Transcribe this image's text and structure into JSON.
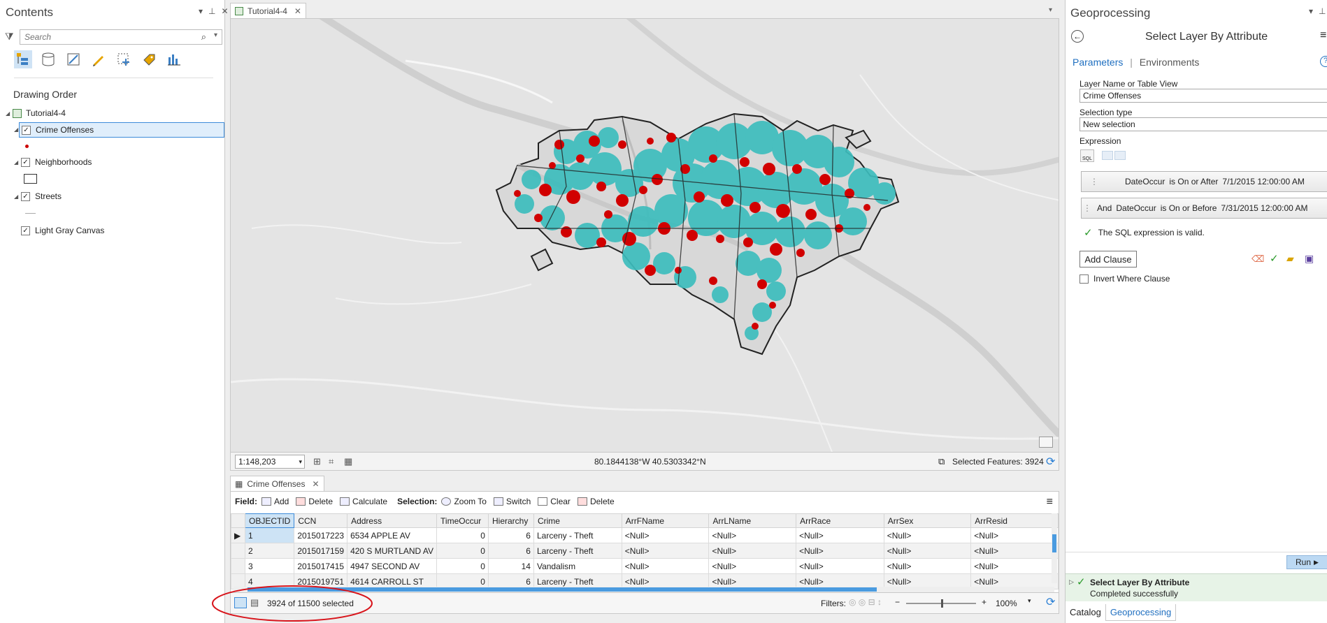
{
  "contents": {
    "title": "Contents",
    "search_placeholder": "Search",
    "section": "Drawing Order",
    "map_name": "Tutorial4-4",
    "layers": [
      {
        "label": "Crime Offenses"
      },
      {
        "label": "Neighborhoods"
      },
      {
        "label": "Streets"
      },
      {
        "label": "Light Gray Canvas"
      }
    ],
    "crime_color": "#cc0000"
  },
  "map": {
    "tab_label": "Tutorial4-4",
    "scale": "1:148,203",
    "coordinates": "80.1844138°W 40.5303342°N",
    "selected_features": "Selected Features: 3924",
    "selection_color": "#3bbcbf",
    "crime_color": "#d10000"
  },
  "table": {
    "tab_label": "Crime Offenses",
    "field_label": "Field:",
    "add": "Add",
    "delete": "Delete",
    "calculate": "Calculate",
    "selection_label": "Selection:",
    "zoom_to": "Zoom To",
    "switch": "Switch",
    "clear": "Clear",
    "sel_delete": "Delete",
    "columns": [
      "OBJECTID",
      "CCN",
      "Address",
      "TimeOccur",
      "Hierarchy",
      "Crime",
      "ArrFName",
      "ArrLName",
      "ArrRace",
      "ArrSex",
      "ArrResid"
    ],
    "rows": [
      [
        "1",
        "2015017223",
        "6534 APPLE AV",
        "0",
        "6",
        "Larceny - Theft",
        "<Null>",
        "<Null>",
        "<Null>",
        "<Null>",
        "<Null>"
      ],
      [
        "2",
        "2015017159",
        "420 S MURTLAND AV",
        "0",
        "6",
        "Larceny - Theft",
        "<Null>",
        "<Null>",
        "<Null>",
        "<Null>",
        "<Null>"
      ],
      [
        "3",
        "2015017415",
        "4947 SECOND AV",
        "0",
        "14",
        "Vandalism",
        "<Null>",
        "<Null>",
        "<Null>",
        "<Null>",
        "<Null>"
      ],
      [
        "4",
        "2015019751",
        "4614 CARROLL ST",
        "0",
        "6",
        "Larceny - Theft",
        "<Null>",
        "<Null>",
        "<Null>",
        "<Null>",
        "<Null>"
      ]
    ],
    "selected_count": "3924 of 11500 selected",
    "filters_label": "Filters:",
    "zoom_percent": "100%"
  },
  "geoprocessing": {
    "title": "Geoprocessing",
    "tool_name": "Select Layer By Attribute",
    "tab_parameters": "Parameters",
    "tab_environments": "Environments",
    "layer_label": "Layer Name or Table View",
    "layer_value": "Crime Offenses",
    "sel_type_label": "Selection type",
    "sel_type_value": "New selection",
    "expression_label": "Expression",
    "clause1": {
      "field": "DateOccur",
      "op": "is On or After",
      "value": "7/1/2015 12:00:00 AM"
    },
    "clause2": {
      "conj": "And",
      "field": "DateOccur",
      "op": "is On or Before",
      "value": "7/31/2015 12:00:00 AM"
    },
    "valid_msg": "The SQL expression is valid.",
    "add_clause": "Add Clause",
    "invert_where": "Invert Where Clause",
    "run": "Run",
    "result_title": "Select Layer By Attribute",
    "result_status": "Completed successfully",
    "bottom_tab_catalog": "Catalog",
    "bottom_tab_geoprocessing": "Geoprocessing"
  }
}
